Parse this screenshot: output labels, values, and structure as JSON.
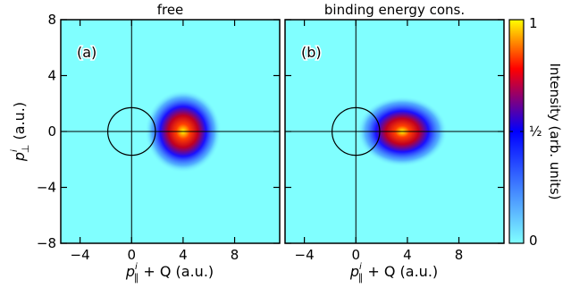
{
  "chart_data": [
    {
      "type": "heatmap",
      "title": "free",
      "panel_label": "(a)",
      "xlabel_main": "p",
      "xlabel_sup": "i",
      "xlabel_sub": "∥",
      "xlabel_rest": " + Q (a.u.)",
      "ylabel_main": "p",
      "ylabel_sup": "i",
      "ylabel_sub": "⊥",
      "ylabel_rest": " (a.u.)",
      "xlim": [
        -5.5,
        11.5
      ],
      "ylim": [
        -8,
        8
      ],
      "xticks": [
        -4,
        0,
        4,
        8
      ],
      "yticks": [
        -8,
        -4,
        0,
        4,
        8
      ],
      "xtick_labels": [
        "−4",
        "0",
        "4",
        "8"
      ],
      "ytick_labels": [
        "−8",
        "−4",
        "0",
        "4",
        "8"
      ],
      "circle": {
        "center": [
          0,
          0
        ],
        "radius": 1.85
      },
      "peak": {
        "x": 4.0,
        "y": 0,
        "width_x": 1.35,
        "width_y": 1.35
      }
    },
    {
      "type": "heatmap",
      "title": "binding energy cons.",
      "panel_label": "(b)",
      "xlabel_main": "p",
      "xlabel_sup": "i",
      "xlabel_sub": "∥",
      "xlabel_rest": " + Q (a.u.)",
      "xlim": [
        -5.5,
        11.5
      ],
      "ylim": [
        -8,
        8
      ],
      "xticks": [
        -4,
        0,
        4,
        8
      ],
      "xtick_labels": [
        "−4",
        "0",
        "4",
        "8"
      ],
      "circle": {
        "center": [
          0,
          0
        ],
        "radius": 1.85
      },
      "peak": {
        "x": 3.6,
        "y": 0,
        "width_x": 1.6,
        "width_y": 1.15
      }
    }
  ],
  "colorbar": {
    "label": "Intensity (arb. units)",
    "ticks": [
      {
        "value": 0,
        "label": "0"
      },
      {
        "value": 0.5,
        "label": "½"
      },
      {
        "value": 1,
        "label": "1"
      }
    ],
    "colors": [
      "#80ffff",
      "#0000ff",
      "#ff0000",
      "#ffff00"
    ]
  }
}
